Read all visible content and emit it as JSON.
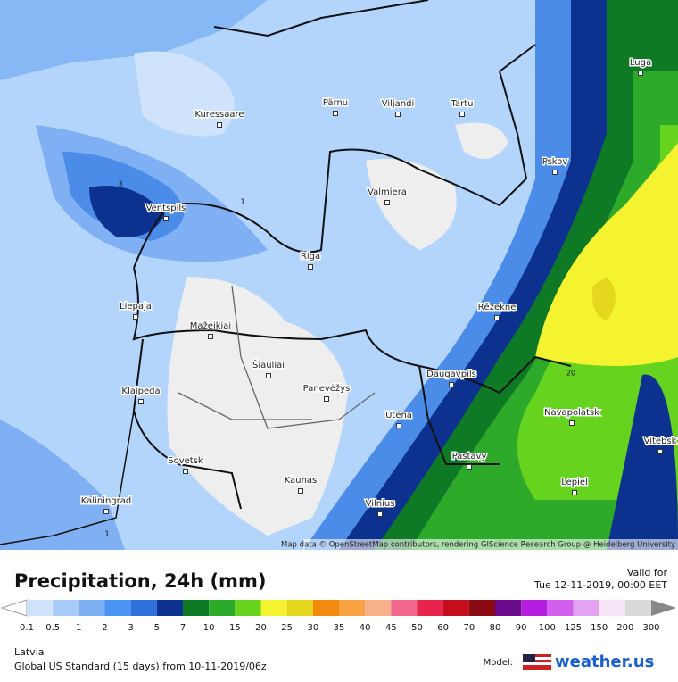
{
  "map": {
    "cities": [
      "Kuressaare",
      "Pärnu",
      "Viljandi",
      "Tartu",
      "Luga",
      "Pskov",
      "Valmiera",
      "Ventspils",
      "Riga",
      "Liepaja",
      "Rēzekne",
      "Mažeikiai",
      "Šiauliai",
      "Panevėžys",
      "Daugavpils",
      "Klaipeda",
      "Utena",
      "Navapolatsk",
      "Vitebsk",
      "Sovetsk",
      "Pastavy",
      "Kaunas",
      "Lepiel",
      "Kaliningrad",
      "Vilnius"
    ],
    "contour_labels": [
      "3",
      "1",
      "20",
      "1"
    ],
    "attribution": "Map data © OpenStreetMap contributors, rendering GIScience Research Group @ Heidelberg University"
  },
  "header": {
    "title": "Precipitation, 24h (mm)",
    "valid_label": "Valid for",
    "valid_time": "Tue 12-11-2019, 00:00 EET"
  },
  "legend": {
    "ticks": [
      0.1,
      0.5,
      1,
      2,
      3,
      5,
      7,
      10,
      15,
      20,
      25,
      30,
      35,
      40,
      45,
      50,
      60,
      70,
      80,
      90,
      100,
      125,
      150,
      200,
      300
    ],
    "colors": [
      "#cfe3fd",
      "#a8cbfa",
      "#7db0f4",
      "#4a94f1",
      "#2d6fdb",
      "#0d318f",
      "#0f7a25",
      "#2eaa2a",
      "#66d41e",
      "#f5f32f",
      "#e5d71e",
      "#f28a0d",
      "#f7a243",
      "#f6b08a",
      "#f2678b",
      "#e8234c",
      "#c40d1d",
      "#8a0b12",
      "#6a0a8c",
      "#b51ee0",
      "#d25fee",
      "#e4a3f2",
      "#f6e4f7",
      "#d9d9d9"
    ]
  },
  "footer": {
    "region": "Latvia",
    "model_run": "Global US Standard (15 days)  from  10-11-2019/06z",
    "model_label": "Model:",
    "brand": "weather.us"
  }
}
